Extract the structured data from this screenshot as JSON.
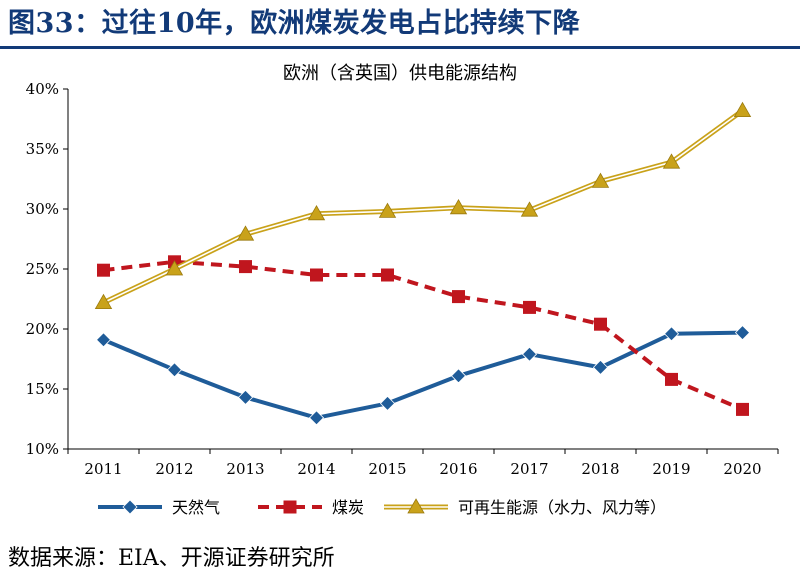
{
  "figure": {
    "title": "图33：过往10年，欧洲煤炭发电占比持续下降",
    "source": "数据来源：EIA、开源证券研究所"
  },
  "chart_data": {
    "type": "line",
    "title": "欧洲（含英国）供电能源结构",
    "xlabel": "",
    "ylabel": "",
    "categories": [
      "2011",
      "2012",
      "2013",
      "2014",
      "2015",
      "2016",
      "2017",
      "2018",
      "2019",
      "2020"
    ],
    "ylim": [
      10,
      40
    ],
    "yticks": [
      10,
      15,
      20,
      25,
      30,
      35,
      40
    ],
    "ytick_labels": [
      "10%",
      "15%",
      "20%",
      "25%",
      "30%",
      "35%",
      "40%"
    ],
    "legend_position": "bottom",
    "series": [
      {
        "name": "天然气",
        "color": "#1f5c99",
        "marker": "diamond",
        "style": "solid",
        "values": [
          19.1,
          16.6,
          14.3,
          12.6,
          13.8,
          16.1,
          17.9,
          16.8,
          19.6,
          19.7
        ]
      },
      {
        "name": "煤炭",
        "color": "#c0161e",
        "marker": "square",
        "style": "dashed",
        "values": [
          24.9,
          25.6,
          25.2,
          24.5,
          24.5,
          22.7,
          21.8,
          20.4,
          15.8,
          13.3
        ]
      },
      {
        "name": "可再生能源（水力、风力等）",
        "color": "#c9a21a",
        "marker": "triangle",
        "style": "double",
        "values": [
          22.2,
          25.0,
          27.9,
          29.6,
          29.8,
          30.1,
          29.9,
          32.3,
          33.9,
          38.2
        ]
      }
    ]
  }
}
